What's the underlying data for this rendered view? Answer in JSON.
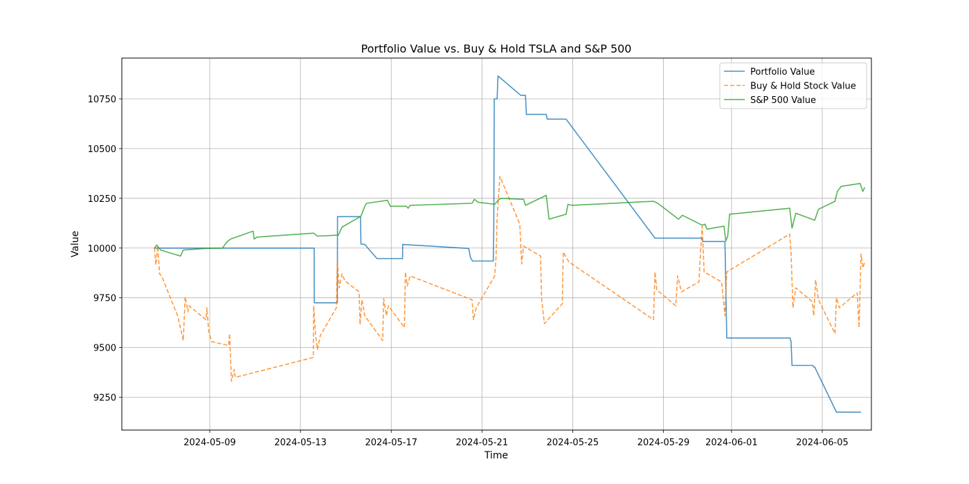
{
  "chart_data": {
    "type": "line",
    "title": "Portfolio Value vs. Buy & Hold TSLA and S&P 500",
    "xlabel": "Time",
    "ylabel": "Value",
    "xlim": [
      "2024-05-05T03:00",
      "2024-06-07T04:00"
    ],
    "ylim": [
      9085,
      10955
    ],
    "grid": true,
    "legend_position": "upper right",
    "xticks": [
      "2024-05-09",
      "2024-05-13",
      "2024-05-17",
      "2024-05-21",
      "2024-05-25",
      "2024-05-29",
      "2024-06-01",
      "2024-06-05"
    ],
    "yticks": [
      9250,
      9500,
      9750,
      10000,
      10250,
      10500,
      10750
    ],
    "series": [
      {
        "name": "Portfolio Value",
        "color": "#1f77b4",
        "style": "solid",
        "points": [
          [
            "2024-05-06T13:30",
            10000
          ],
          [
            "2024-05-13T14:30",
            10000
          ],
          [
            "2024-05-13T14:40",
            9725
          ],
          [
            "2024-05-14T15:00",
            9725
          ],
          [
            "2024-05-14T15:10",
            10158
          ],
          [
            "2024-05-15T15:30",
            10158
          ],
          [
            "2024-05-15T16:00",
            10020
          ],
          [
            "2024-05-15T20:00",
            10018
          ],
          [
            "2024-05-16T09:00",
            9947
          ],
          [
            "2024-05-17T12:00",
            9947
          ],
          [
            "2024-05-17T12:10",
            10018
          ],
          [
            "2024-05-20T10:00",
            9998
          ],
          [
            "2024-05-20T12:00",
            9950
          ],
          [
            "2024-05-20T14:00",
            9935
          ],
          [
            "2024-05-21T12:00",
            9935
          ],
          [
            "2024-05-21T12:30",
            10100
          ],
          [
            "2024-05-21T13:00",
            10750
          ],
          [
            "2024-05-21T16:00",
            10750
          ],
          [
            "2024-05-21T17:00",
            10865
          ],
          [
            "2024-05-22T17:00",
            10768
          ],
          [
            "2024-05-22T22:00",
            10768
          ],
          [
            "2024-05-22T23:00",
            10672
          ],
          [
            "2024-05-23T20:00",
            10672
          ],
          [
            "2024-05-23T21:00",
            10648
          ],
          [
            "2024-05-24T17:00",
            10648
          ],
          [
            "2024-05-28T15:00",
            10050
          ],
          [
            "2024-05-30T17:00",
            10050
          ],
          [
            "2024-05-30T17:30",
            10033
          ],
          [
            "2024-05-31T17:00",
            10033
          ],
          [
            "2024-05-31T17:30",
            9935
          ],
          [
            "2024-05-31T19:00",
            9548
          ],
          [
            "2024-06-03T14:00",
            9548
          ],
          [
            "2024-06-03T15:00",
            9530
          ],
          [
            "2024-06-03T16:00",
            9410
          ],
          [
            "2024-06-04T14:00",
            9410
          ],
          [
            "2024-06-04T15:00",
            9402
          ],
          [
            "2024-06-04T16:00",
            9402
          ],
          [
            "2024-06-05T15:00",
            9175
          ],
          [
            "2024-06-06T17:00",
            9175
          ]
        ]
      },
      {
        "name": "Buy & Hold Stock Value",
        "color": "#ff7f0e",
        "style": "dashed",
        "points": [
          [
            "2024-05-06T13:30",
            10000
          ],
          [
            "2024-05-06T15:00",
            9915
          ],
          [
            "2024-05-06T17:00",
            10010
          ],
          [
            "2024-05-06T19:00",
            9870
          ],
          [
            "2024-05-06T21:00",
            9860
          ],
          [
            "2024-05-07T14:00",
            9660
          ],
          [
            "2024-05-07T20:00",
            9535
          ],
          [
            "2024-05-07T22:00",
            9755
          ],
          [
            "2024-05-08T01:00",
            9680
          ],
          [
            "2024-05-08T02:00",
            9710
          ],
          [
            "2024-05-08T20:00",
            9640
          ],
          [
            "2024-05-08T21:00",
            9700
          ],
          [
            "2024-05-08T23:00",
            9580
          ],
          [
            "2024-05-09T02:00",
            9530
          ],
          [
            "2024-05-09T20:00",
            9510
          ],
          [
            "2024-05-09T21:00",
            9570
          ],
          [
            "2024-05-09T23:00",
            9330
          ],
          [
            "2024-05-10T02:00",
            9390
          ],
          [
            "2024-05-10T03:00",
            9350
          ],
          [
            "2024-05-13T13:30",
            9450
          ],
          [
            "2024-05-13T14:00",
            9710
          ],
          [
            "2024-05-13T16:00",
            9560
          ],
          [
            "2024-05-13T18:00",
            9490
          ],
          [
            "2024-05-13T21:00",
            9560
          ],
          [
            "2024-05-14T14:00",
            9700
          ],
          [
            "2024-05-14T15:00",
            9935
          ],
          [
            "2024-05-14T17:00",
            9800
          ],
          [
            "2024-05-14T20:00",
            9870
          ],
          [
            "2024-05-14T23:00",
            9835
          ],
          [
            "2024-05-15T14:00",
            9780
          ],
          [
            "2024-05-15T15:00",
            9615
          ],
          [
            "2024-05-15T17:00",
            9740
          ],
          [
            "2024-05-15T20:00",
            9660
          ],
          [
            "2024-05-16T15:00",
            9535
          ],
          [
            "2024-05-16T16:00",
            9745
          ],
          [
            "2024-05-16T19:00",
            9660
          ],
          [
            "2024-05-16T21:00",
            9710
          ],
          [
            "2024-05-17T14:00",
            9600
          ],
          [
            "2024-05-17T15:00",
            9880
          ],
          [
            "2024-05-17T17:00",
            9810
          ],
          [
            "2024-05-17T20:00",
            9860
          ],
          [
            "2024-05-20T13:30",
            9740
          ],
          [
            "2024-05-20T15:00",
            9640
          ],
          [
            "2024-05-20T18:00",
            9700
          ],
          [
            "2024-05-21T13:30",
            9860
          ],
          [
            "2024-05-21T15:00",
            9960
          ],
          [
            "2024-05-21T16:00",
            10150
          ],
          [
            "2024-05-21T19:00",
            10360
          ],
          [
            "2024-05-22T16:00",
            10120
          ],
          [
            "2024-05-22T18:00",
            9920
          ],
          [
            "2024-05-22T20:00",
            10010
          ],
          [
            "2024-05-23T14:00",
            9960
          ],
          [
            "2024-05-23T15:00",
            9750
          ],
          [
            "2024-05-23T18:00",
            9620
          ],
          [
            "2024-05-24T13:00",
            9720
          ],
          [
            "2024-05-24T14:00",
            9980
          ],
          [
            "2024-05-24T20:00",
            9930
          ],
          [
            "2024-05-28T13:30",
            9640
          ],
          [
            "2024-05-28T15:00",
            9880
          ],
          [
            "2024-05-28T17:00",
            9790
          ],
          [
            "2024-05-29T13:00",
            9710
          ],
          [
            "2024-05-29T15:00",
            9860
          ],
          [
            "2024-05-29T19:00",
            9780
          ],
          [
            "2024-05-30T13:30",
            9830
          ],
          [
            "2024-05-30T15:00",
            9960
          ],
          [
            "2024-05-30T17:00",
            10110
          ],
          [
            "2024-05-30T19:00",
            9880
          ],
          [
            "2024-05-31T13:30",
            9830
          ],
          [
            "2024-05-31T15:00",
            9760
          ],
          [
            "2024-05-31T17:00",
            9660
          ],
          [
            "2024-05-31T19:00",
            9880
          ],
          [
            "2024-06-03T13:30",
            10070
          ],
          [
            "2024-06-03T15:00",
            9980
          ],
          [
            "2024-06-03T17:00",
            9700
          ],
          [
            "2024-06-03T20:00",
            9800
          ],
          [
            "2024-06-04T13:30",
            9730
          ],
          [
            "2024-06-04T15:00",
            9660
          ],
          [
            "2024-06-04T17:00",
            9840
          ],
          [
            "2024-06-04T20:00",
            9740
          ],
          [
            "2024-06-05T13:30",
            9570
          ],
          [
            "2024-06-05T15:00",
            9750
          ],
          [
            "2024-06-05T18:00",
            9700
          ],
          [
            "2024-06-06T13:00",
            9775
          ],
          [
            "2024-06-06T15:00",
            9600
          ],
          [
            "2024-06-06T17:00",
            9970
          ],
          [
            "2024-06-06T19:00",
            9900
          ],
          [
            "2024-06-06T21:00",
            9930
          ]
        ]
      },
      {
        "name": "S&P 500 Value",
        "color": "#2ca02c",
        "style": "solid",
        "points": [
          [
            "2024-05-06T13:30",
            10000
          ],
          [
            "2024-05-06T16:00",
            10015
          ],
          [
            "2024-05-06T20:00",
            9990
          ],
          [
            "2024-05-07T17:00",
            9960
          ],
          [
            "2024-05-07T20:00",
            9990
          ],
          [
            "2024-05-08T20:00",
            9998
          ],
          [
            "2024-05-09T13:30",
            10000
          ],
          [
            "2024-05-09T18:00",
            10030
          ],
          [
            "2024-05-09T22:00",
            10045
          ],
          [
            "2024-05-10T22:00",
            10085
          ],
          [
            "2024-05-10T23:00",
            10045
          ],
          [
            "2024-05-11T02:00",
            10055
          ],
          [
            "2024-05-13T14:00",
            10075
          ],
          [
            "2024-05-13T18:00",
            10060
          ],
          [
            "2024-05-14T16:00",
            10065
          ],
          [
            "2024-05-14T20:00",
            10105
          ],
          [
            "2024-05-15T16:00",
            10160
          ],
          [
            "2024-05-15T20:00",
            10210
          ],
          [
            "2024-05-15T22:00",
            10225
          ],
          [
            "2024-05-16T20:00",
            10240
          ],
          [
            "2024-05-16T23:00",
            10210
          ],
          [
            "2024-05-17T16:00",
            10210
          ],
          [
            "2024-05-17T18:00",
            10200
          ],
          [
            "2024-05-17T20:00",
            10215
          ],
          [
            "2024-05-20T13:30",
            10225
          ],
          [
            "2024-05-20T16:00",
            10245
          ],
          [
            "2024-05-20T20:00",
            10230
          ],
          [
            "2024-05-21T13:30",
            10220
          ],
          [
            "2024-05-21T17:00",
            10240
          ],
          [
            "2024-05-21T20:00",
            10250
          ],
          [
            "2024-05-22T20:00",
            10245
          ],
          [
            "2024-05-22T22:00",
            10215
          ],
          [
            "2024-05-23T20:00",
            10265
          ],
          [
            "2024-05-23T23:00",
            10145
          ],
          [
            "2024-05-24T17:00",
            10170
          ],
          [
            "2024-05-24T19:00",
            10220
          ],
          [
            "2024-05-24T23:00",
            10215
          ],
          [
            "2024-05-28T13:30",
            10235
          ],
          [
            "2024-05-28T18:00",
            10225
          ],
          [
            "2024-05-29T16:00",
            10145
          ],
          [
            "2024-05-29T20:00",
            10165
          ],
          [
            "2024-05-30T17:00",
            10115
          ],
          [
            "2024-05-30T20:00",
            10120
          ],
          [
            "2024-05-30T22:00",
            10095
          ],
          [
            "2024-05-31T16:00",
            10110
          ],
          [
            "2024-05-31T18:00",
            10035
          ],
          [
            "2024-05-31T20:00",
            10060
          ],
          [
            "2024-05-31T22:00",
            10170
          ],
          [
            "2024-06-03T13:30",
            10200
          ],
          [
            "2024-06-03T16:00",
            10100
          ],
          [
            "2024-06-03T20:00",
            10175
          ],
          [
            "2024-06-04T16:00",
            10140
          ],
          [
            "2024-06-04T20:00",
            10195
          ],
          [
            "2024-06-05T13:30",
            10235
          ],
          [
            "2024-06-05T16:00",
            10285
          ],
          [
            "2024-06-05T20:00",
            10310
          ],
          [
            "2024-06-06T16:00",
            10325
          ],
          [
            "2024-06-06T19:00",
            10285
          ],
          [
            "2024-06-06T21:00",
            10305
          ]
        ]
      }
    ]
  }
}
